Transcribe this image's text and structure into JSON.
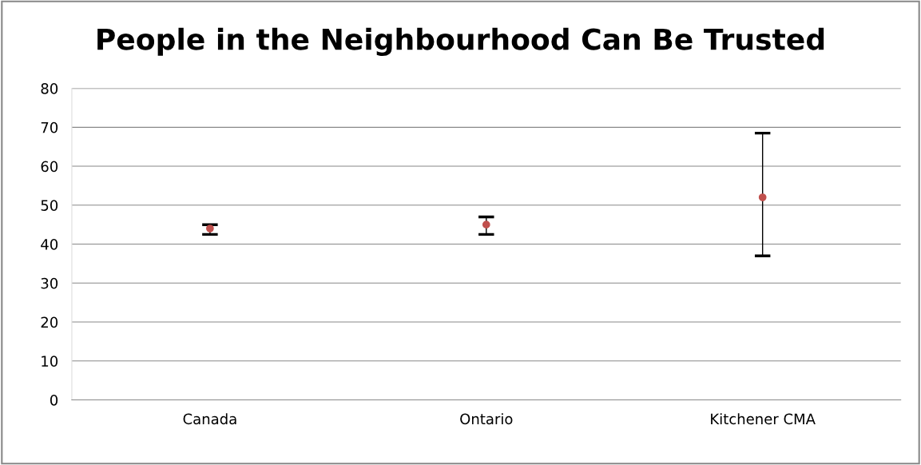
{
  "chart_data": {
    "type": "scatter",
    "title": "People in the Neighbourhood Can Be Trusted",
    "categories": [
      "Canada",
      "Ontario",
      "Kitchener CMA"
    ],
    "series": [
      {
        "color": "#c0504d",
        "values": [
          44,
          45,
          52
        ],
        "errors": [
          [
            42.5,
            45
          ],
          [
            42.5,
            47
          ],
          [
            37,
            68.5
          ]
        ]
      }
    ],
    "ylim": [
      0,
      80
    ],
    "yticks": [
      0,
      10,
      20,
      30,
      40,
      50,
      60,
      70,
      80
    ],
    "grid": "y",
    "marker": "circle",
    "legend": false
  }
}
